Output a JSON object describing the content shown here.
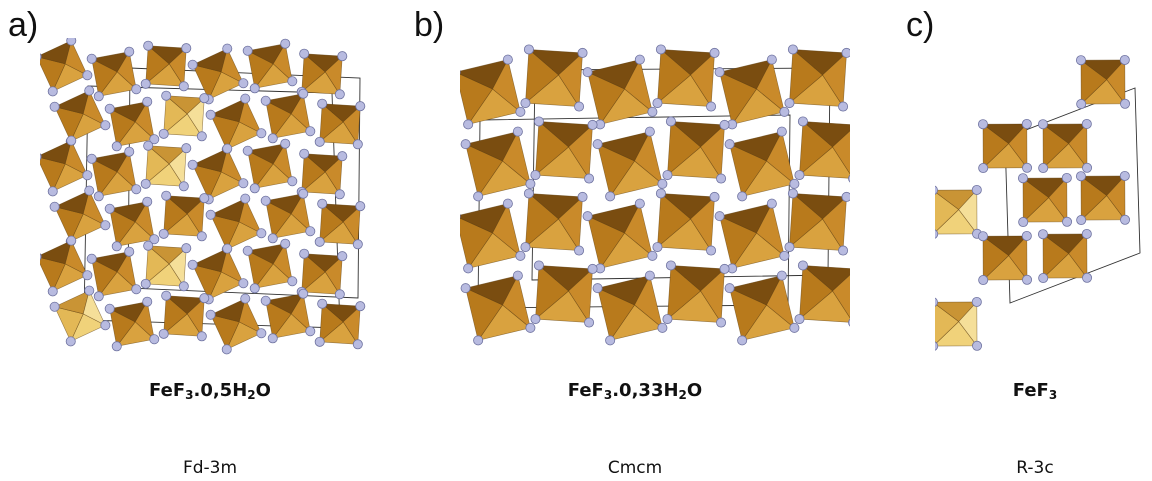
{
  "panels": [
    {
      "letter": "a)",
      "formula": {
        "p1": "FeF",
        "s1": "3",
        "p2": ".0,5H",
        "s2": "2",
        "p3": "O"
      },
      "space_group": "Fd-3m"
    },
    {
      "letter": "b)",
      "formula": {
        "p1": "FeF",
        "s1": "3",
        "p2": ".0,33H",
        "s2": "2",
        "p3": "O"
      },
      "space_group": "Cmcm"
    },
    {
      "letter": "c)",
      "formula": {
        "p1": "FeF",
        "s1": "3",
        "p2": "",
        "s2": "",
        "p3": ""
      },
      "space_group": "R-3c"
    }
  ],
  "colors": {
    "octahedron_light": "#d9a23f",
    "octahedron_mid": "#b87a1c",
    "octahedron_dark": "#7a4d10",
    "octahedron_pale": "#f0d27a",
    "atom": "#b8bbe0",
    "cell_line": "#333333"
  }
}
